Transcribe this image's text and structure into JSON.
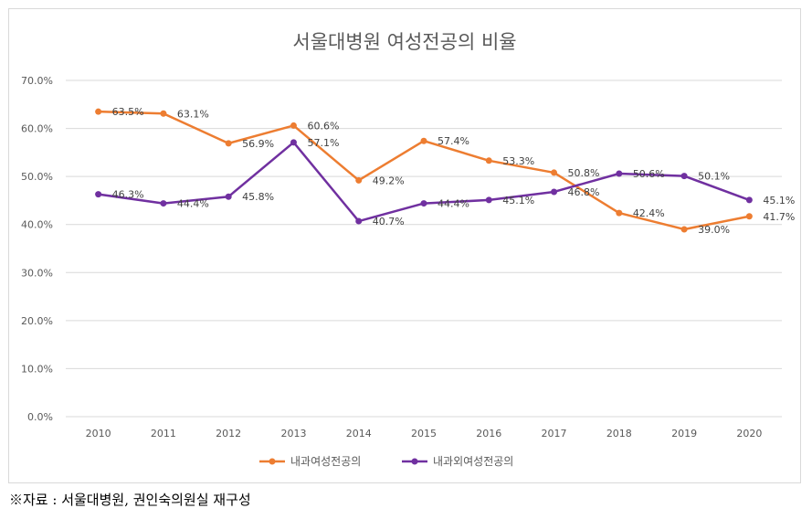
{
  "chart_data": {
    "type": "line",
    "title": "서울대병원 여성전공의 비율",
    "categories": [
      "2010",
      "2011",
      "2012",
      "2013",
      "2014",
      "2015",
      "2016",
      "2017",
      "2018",
      "2019",
      "2020"
    ],
    "y_tick_labels": [
      "0.0%",
      "10.0%",
      "20.0%",
      "30.0%",
      "40.0%",
      "50.0%",
      "60.0%",
      "70.0%"
    ],
    "ylim": [
      0,
      70
    ],
    "grid": true,
    "legend_position": "bottom",
    "series": [
      {
        "name": "내과여성전공의",
        "color": "#ed7d31",
        "values": [
          63.5,
          63.1,
          56.9,
          60.6,
          49.2,
          57.4,
          53.3,
          50.8,
          42.4,
          39.0,
          41.7
        ],
        "labels": [
          "63.5%",
          "63.1%",
          "56.9%",
          "60.6%",
          "49.2%",
          "57.4%",
          "53.3%",
          "50.8%",
          "42.4%",
          "39.0%",
          "41.7%"
        ]
      },
      {
        "name": "내과외여성전공의",
        "color": "#7030a0",
        "values": [
          46.3,
          44.4,
          45.8,
          57.1,
          40.7,
          44.4,
          45.1,
          46.8,
          50.6,
          50.1,
          45.1
        ],
        "labels": [
          "46.3%",
          "44.4%",
          "45.8%",
          "57.1%",
          "40.7%",
          "44.4%",
          "45.1%",
          "46.8%",
          "50.6%",
          "50.1%",
          "45.1%"
        ]
      }
    ]
  },
  "source_note": "※자료 : 서울대병원, 권인숙의원실 재구성"
}
